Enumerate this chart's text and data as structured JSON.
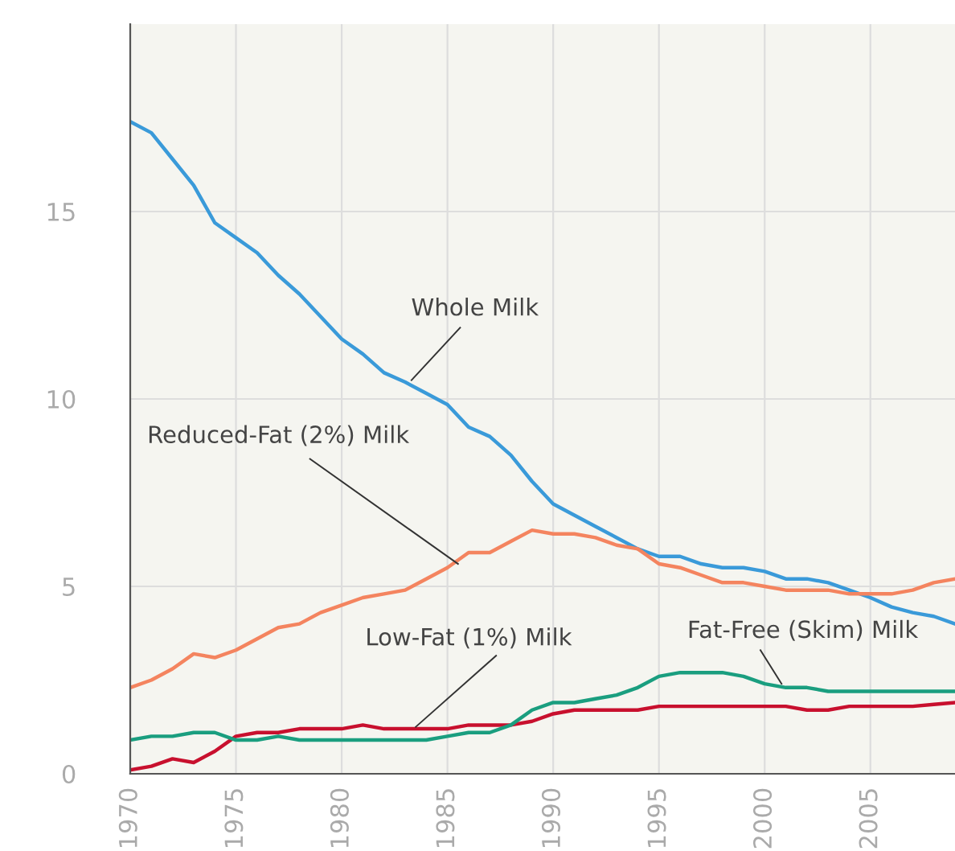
{
  "chart_data": {
    "type": "line",
    "x": [
      1970,
      1971,
      1972,
      1973,
      1974,
      1975,
      1976,
      1977,
      1978,
      1979,
      1980,
      1981,
      1982,
      1983,
      1984,
      1985,
      1986,
      1987,
      1988,
      1989,
      1990,
      1991,
      1992,
      1993,
      1994,
      1995,
      1996,
      1997,
      1998,
      1999,
      2000,
      2001,
      2002,
      2003,
      2004,
      2005,
      2006,
      2007,
      2008,
      2009
    ],
    "series": [
      {
        "name": "Whole Milk",
        "color": "#3a9ad9",
        "values": [
          17.4,
          17.1,
          16.4,
          15.7,
          14.7,
          14.3,
          13.9,
          13.3,
          12.8,
          12.2,
          11.6,
          11.2,
          10.7,
          10.45,
          10.15,
          9.85,
          9.25,
          9.0,
          8.5,
          7.8,
          7.2,
          6.9,
          6.6,
          6.3,
          6.0,
          5.8,
          5.8,
          5.6,
          5.5,
          5.5,
          5.4,
          5.2,
          5.2,
          5.1,
          4.9,
          4.7,
          4.45,
          4.3,
          4.2,
          4.0
        ]
      },
      {
        "name": "Reduced-Fat (2%) Milk",
        "color": "#f4845f",
        "values": [
          2.3,
          2.5,
          2.8,
          3.2,
          3.1,
          3.3,
          3.6,
          3.9,
          4.0,
          4.3,
          4.5,
          4.7,
          4.8,
          4.9,
          5.2,
          5.5,
          5.9,
          5.9,
          6.2,
          6.5,
          6.4,
          6.4,
          6.3,
          6.1,
          6.0,
          5.6,
          5.5,
          5.3,
          5.1,
          5.1,
          5.0,
          4.9,
          4.9,
          4.9,
          4.8,
          4.8,
          4.8,
          4.9,
          5.1,
          5.2
        ]
      },
      {
        "name": "Low-Fat (1%) Milk",
        "color": "#c8102e",
        "values": [
          0.1,
          0.2,
          0.4,
          0.3,
          0.6,
          1.0,
          1.1,
          1.1,
          1.2,
          1.2,
          1.2,
          1.3,
          1.2,
          1.2,
          1.2,
          1.2,
          1.3,
          1.3,
          1.3,
          1.4,
          1.6,
          1.7,
          1.7,
          1.7,
          1.7,
          1.8,
          1.8,
          1.8,
          1.8,
          1.8,
          1.8,
          1.8,
          1.7,
          1.7,
          1.8,
          1.8,
          1.8,
          1.8,
          1.85,
          1.9
        ]
      },
      {
        "name": "Fat-Free (Skim) Milk",
        "color": "#1a9e7f",
        "values": [
          0.9,
          1.0,
          1.0,
          1.1,
          1.1,
          0.9,
          0.9,
          1.0,
          0.9,
          0.9,
          0.9,
          0.9,
          0.9,
          0.9,
          0.9,
          1.0,
          1.1,
          1.1,
          1.3,
          1.7,
          1.9,
          1.9,
          2.0,
          2.1,
          2.3,
          2.6,
          2.7,
          2.7,
          2.7,
          2.6,
          2.4,
          2.3,
          2.3,
          2.2,
          2.2,
          2.2,
          2.2,
          2.2,
          2.2,
          2.2
        ]
      }
    ],
    "xlim": [
      1970,
      2009
    ],
    "ylim": [
      0,
      20
    ],
    "xticks": [
      1970,
      1975,
      1980,
      1985,
      1990,
      1995,
      2000,
      2005
    ],
    "yticks": [
      0,
      5,
      10,
      15
    ],
    "grid": true,
    "legend": false,
    "marker": "none",
    "line_style": "solid"
  }
}
